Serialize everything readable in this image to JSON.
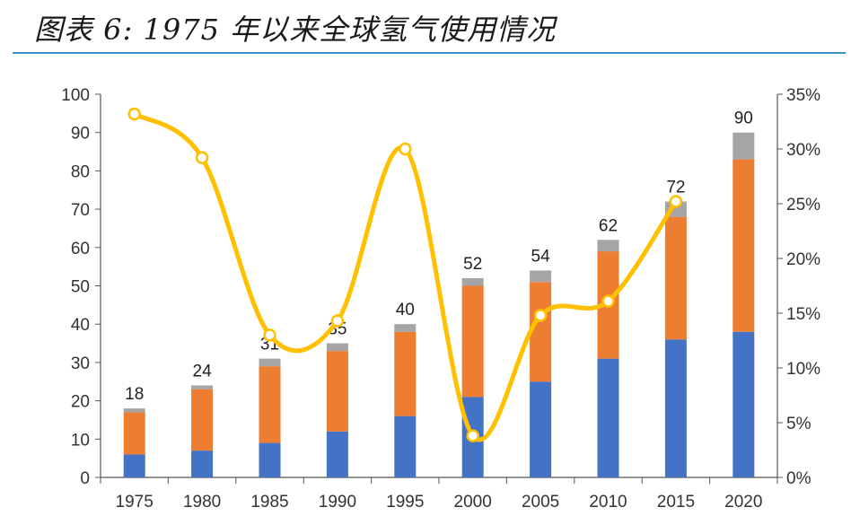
{
  "title": "图表 6:  1975 年以来全球氢气使用情况",
  "chart_data": {
    "type": "bar",
    "categories": [
      "1975",
      "1980",
      "1985",
      "1990",
      "1995",
      "2000",
      "2005",
      "2010",
      "2015",
      "2020"
    ],
    "series": [
      {
        "values": [
          6,
          7,
          9,
          12,
          16,
          21,
          25,
          31,
          36,
          38
        ],
        "color": "#4472c4"
      },
      {
        "values": [
          11,
          16,
          20,
          21,
          22,
          29,
          26,
          28,
          32,
          45
        ],
        "color": "#ed7d31"
      },
      {
        "values": [
          1,
          1,
          2,
          2,
          2,
          2,
          3,
          3,
          4,
          7
        ],
        "color": "#a5a5a5"
      }
    ],
    "totals": [
      18,
      24,
      31,
      35,
      40,
      52,
      54,
      62,
      72,
      90
    ],
    "line": {
      "axis": "right",
      "color": "#ffc000",
      "values": [
        33.2,
        29.2,
        13.0,
        14.3,
        30.0,
        3.8,
        14.8,
        16.1,
        25.2,
        null
      ]
    },
    "left_axis": {
      "ylim": [
        0,
        100
      ],
      "ticks": [
        0,
        10,
        20,
        30,
        40,
        50,
        60,
        70,
        80,
        90,
        100
      ]
    },
    "right_axis": {
      "ylim": [
        0,
        35
      ],
      "ticks": [
        0,
        5,
        10,
        15,
        20,
        25,
        30,
        35
      ],
      "tick_labels": [
        "0%",
        "5%",
        "10%",
        "15%",
        "20%",
        "25%",
        "30%",
        "35%"
      ]
    },
    "grid": false,
    "legend": "none"
  }
}
